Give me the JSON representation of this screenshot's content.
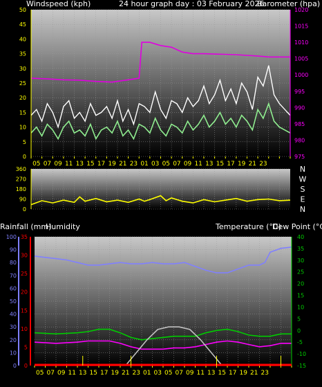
{
  "header": {
    "windspeed": "Windspeed (kph)",
    "title": "24 hour graph day : 03 February 2026",
    "barometer": "Barometer (hpa)",
    "rainfall": "Rainfall (mm)",
    "humidity": "Humidity",
    "temperature": "Temperature (°C)",
    "dewpoint": "Dew Point (°C)"
  },
  "colors": {
    "wind": "#90ee90",
    "gust": "#ffffff",
    "barometer": "#e000e0",
    "direction": "#ffff00",
    "humidity": "#8080ff",
    "temperature": "#00cc00",
    "dewpoint": "#ff00ff",
    "solar": "#c0c0c0",
    "rain": "#ff0000",
    "rain_ticks": "#ffff00",
    "axis_left": "#ffff00",
    "axis_pressure": "#ff00ff",
    "axis_humidity": "#8080ff",
    "axis_rain": "#ff0000",
    "axis_temp": "#00cc00"
  },
  "x_labels": [
    "05",
    "07",
    "09",
    "11",
    "13",
    "15",
    "17",
    "19",
    "21",
    "23",
    "01",
    "03",
    "05",
    "07",
    "09",
    "11",
    "13",
    "15",
    "17",
    "19",
    "21",
    "23"
  ],
  "chart_data": [
    {
      "type": "line",
      "id": "wind",
      "x_range": [
        0,
        48
      ],
      "y_left": {
        "name": "Windspeed (kph)",
        "range": [
          0,
          50
        ],
        "ticks": [
          0,
          5,
          10,
          15,
          20,
          25,
          30,
          35,
          40,
          45,
          50
        ]
      },
      "y_right": {
        "name": "Barometer (hpa)",
        "range": [
          975,
          1020
        ],
        "ticks": [
          975,
          980,
          985,
          990,
          995,
          1000,
          1005,
          1010,
          1015,
          1020
        ]
      },
      "series": [
        {
          "axis": "left",
          "style": "wind",
          "x": [
            0,
            1,
            2,
            3,
            4,
            5,
            6,
            7,
            8,
            9,
            10,
            11,
            12,
            13,
            14,
            15,
            16,
            17,
            18,
            19,
            20,
            21,
            22,
            23,
            24,
            25,
            26,
            27,
            28,
            29,
            30,
            31,
            32,
            33,
            34,
            35,
            36,
            37,
            38,
            39,
            40,
            41,
            42,
            43,
            44,
            45,
            46,
            47,
            48
          ],
          "y": [
            8,
            10,
            7,
            11,
            9,
            6,
            10,
            12,
            8,
            9,
            7,
            11,
            6,
            9,
            10,
            8,
            12,
            7,
            9,
            6,
            11,
            10,
            8,
            13,
            9,
            7,
            11,
            10,
            8,
            12,
            9,
            11,
            14,
            10,
            12,
            15,
            11,
            13,
            10,
            14,
            12,
            9,
            16,
            13,
            18,
            12,
            10,
            9,
            8
          ]
        },
        {
          "axis": "left",
          "style": "gust",
          "x": [
            0,
            1,
            2,
            3,
            4,
            5,
            6,
            7,
            8,
            9,
            10,
            11,
            12,
            13,
            14,
            15,
            16,
            17,
            18,
            19,
            20,
            21,
            22,
            23,
            24,
            25,
            26,
            27,
            28,
            29,
            30,
            31,
            32,
            33,
            34,
            35,
            36,
            37,
            38,
            39,
            40,
            41,
            42,
            43,
            44,
            45,
            46,
            47,
            48
          ],
          "y": [
            14,
            16,
            12,
            18,
            15,
            10,
            17,
            19,
            13,
            15,
            12,
            18,
            14,
            15,
            17,
            13,
            19,
            12,
            16,
            11,
            18,
            17,
            15,
            22,
            16,
            13,
            19,
            18,
            15,
            20,
            17,
            19,
            24,
            18,
            21,
            26,
            19,
            23,
            18,
            25,
            22,
            16,
            27,
            24,
            31,
            21,
            18,
            16,
            14
          ]
        },
        {
          "axis": "right",
          "style": "barometer",
          "x": [
            0,
            3,
            6,
            9,
            12,
            15,
            18,
            20,
            20.5,
            22,
            24,
            26,
            28,
            30,
            32,
            34,
            36,
            38,
            40,
            42,
            44,
            46,
            48
          ],
          "y": [
            999,
            998.8,
            998.5,
            998.4,
            998,
            997.8,
            998.5,
            999,
            1010,
            1010,
            1009,
            1008.5,
            1007,
            1006.5,
            1006.5,
            1006.4,
            1006.3,
            1006.2,
            1006,
            1005.8,
            1005.5,
            1005.5,
            1005.5
          ]
        }
      ]
    },
    {
      "type": "line",
      "id": "direction",
      "x_range": [
        0,
        48
      ],
      "y_left": {
        "name": "",
        "range": [
          0,
          360
        ],
        "ticks": [
          0,
          90,
          180,
          270,
          360
        ]
      },
      "y_right_labels": [
        "N",
        "W",
        "S",
        "E",
        "N"
      ],
      "series": [
        {
          "axis": "left",
          "style": "direction",
          "x": [
            0,
            2,
            4,
            6,
            8,
            9,
            10,
            12,
            14,
            16,
            18,
            20,
            21,
            22,
            24,
            25,
            26,
            28,
            30,
            32,
            34,
            36,
            38,
            40,
            42,
            44,
            46,
            48
          ],
          "y": [
            40,
            75,
            55,
            80,
            60,
            110,
            70,
            95,
            65,
            80,
            60,
            90,
            70,
            85,
            120,
            75,
            100,
            70,
            55,
            85,
            65,
            80,
            95,
            70,
            85,
            90,
            75,
            80
          ]
        }
      ]
    },
    {
      "type": "line",
      "id": "climate",
      "x_range": [
        0,
        48
      ],
      "y_humidity": {
        "name": "Humidity",
        "range": [
          0,
          100
        ],
        "ticks": [
          0,
          10,
          20,
          30,
          40,
          50,
          60,
          70,
          80,
          90,
          100
        ]
      },
      "y_rain": {
        "name": "Rainfall (mm)",
        "range": [
          0,
          35
        ],
        "ticks": [
          0,
          5,
          10,
          15,
          20,
          25,
          30,
          35
        ]
      },
      "y_temp": {
        "name": "Temperature (°C)",
        "range": [
          -15,
          40
        ],
        "ticks": [
          -15,
          -10,
          -5,
          0,
          5,
          10,
          15,
          20,
          25,
          30,
          35,
          40
        ]
      },
      "series": [
        {
          "axis": "humidity",
          "style": "humidity",
          "x": [
            0,
            2,
            4,
            6,
            8,
            10,
            12,
            14,
            16,
            18,
            20,
            22,
            24,
            26,
            28,
            30,
            32,
            34,
            36,
            38,
            40,
            42,
            43,
            44,
            46,
            48
          ],
          "y": [
            85,
            84,
            83,
            82,
            80,
            78,
            78,
            79,
            80,
            79,
            79,
            80,
            79,
            79,
            80,
            77,
            74,
            72,
            72,
            75,
            78,
            78,
            80,
            88,
            91,
            92
          ]
        },
        {
          "axis": "temp",
          "style": "temperature",
          "x": [
            0,
            4,
            8,
            10,
            12,
            14,
            16,
            18,
            20,
            22,
            24,
            26,
            28,
            30,
            32,
            34,
            36,
            38,
            40,
            42,
            44,
            46,
            48
          ],
          "y": [
            -1,
            -1.5,
            -1,
            -0.5,
            0.5,
            0.5,
            -1,
            -3,
            -4,
            -3.5,
            -3,
            -2.5,
            -2.5,
            -2.5,
            -1,
            0,
            0.5,
            -0.5,
            -2,
            -2.5,
            -2.5,
            -1.5,
            -1.5
          ]
        },
        {
          "axis": "temp",
          "style": "dewpoint",
          "x": [
            0,
            4,
            8,
            10,
            12,
            14,
            16,
            18,
            20,
            22,
            24,
            26,
            28,
            30,
            32,
            34,
            36,
            38,
            40,
            42,
            44,
            46,
            48
          ],
          "y": [
            -5,
            -5.5,
            -5,
            -4.5,
            -4.5,
            -4.5,
            -5.5,
            -7,
            -8,
            -8,
            -8,
            -7.5,
            -7.5,
            -7,
            -6,
            -5,
            -4.5,
            -5,
            -6,
            -7,
            -6.5,
            -5.5,
            -5.5
          ]
        },
        {
          "axis": "humidity",
          "style": "solar",
          "x": [
            17,
            19,
            21,
            23,
            25,
            27,
            29,
            31,
            33,
            35
          ],
          "y": [
            0,
            10,
            20,
            28,
            30,
            30,
            28,
            20,
            10,
            0
          ]
        },
        {
          "axis": "rain",
          "style": "rain",
          "x": [
            0,
            48
          ],
          "y": [
            0,
            0
          ]
        }
      ]
    }
  ]
}
